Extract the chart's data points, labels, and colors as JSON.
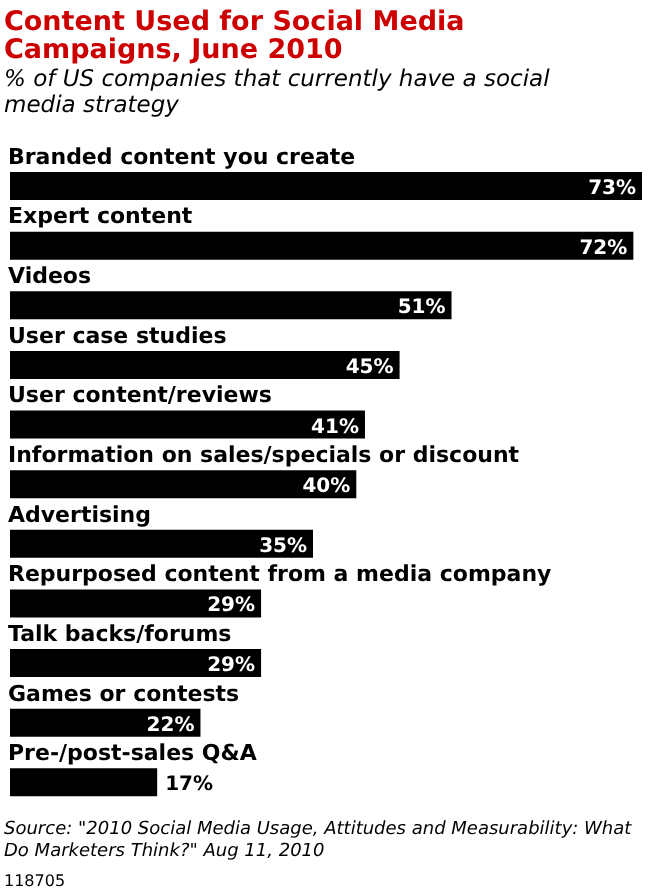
{
  "chart_data": {
    "type": "bar",
    "orientation": "horizontal",
    "title": "Content Used for Social Media Campaigns, June 2010",
    "subtitle": "% of US companies that currently have a social media strategy",
    "categories": [
      "Branded content you create",
      "Expert content",
      "Videos",
      "User case studies",
      "User content/reviews",
      "Information on sales/specials or discount",
      "Advertising",
      "Repurposed content from a media company",
      "Talk backs/forums",
      "Games or contests",
      "Pre-/post-sales Q&A"
    ],
    "values": [
      73,
      72,
      51,
      45,
      41,
      40,
      35,
      29,
      29,
      22,
      17
    ],
    "value_labels": [
      "73%",
      "72%",
      "51%",
      "45%",
      "41%",
      "40%",
      "35%",
      "29%",
      "29%",
      "22%",
      "17%"
    ],
    "color": "#000000",
    "annotations": [
      "Source: \"2010 Social Media Usage, Attitudes and Measurability: What Do Marketers Think?\" Aug 11, 2010",
      "118705"
    ]
  }
}
